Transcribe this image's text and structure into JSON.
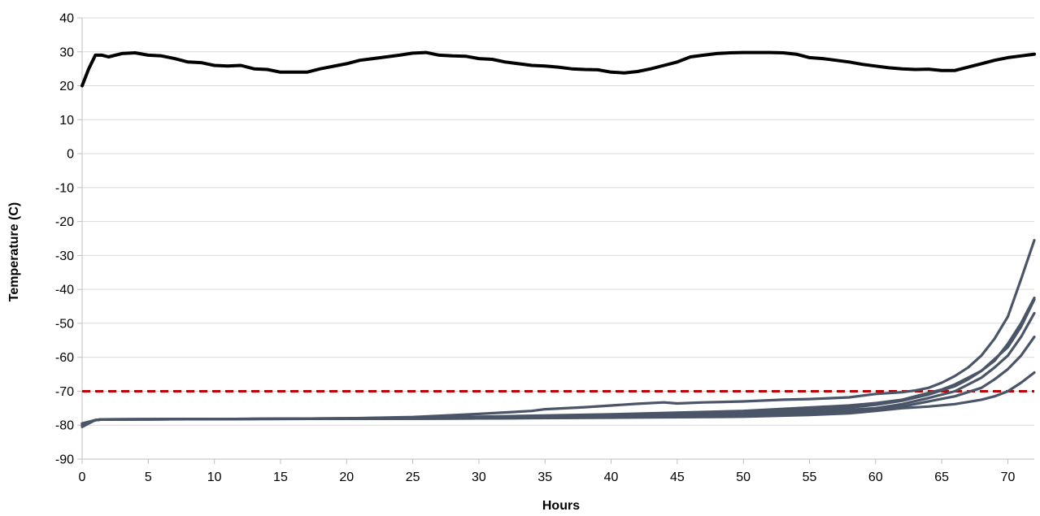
{
  "chart_data": {
    "type": "line",
    "title": "",
    "xlabel": "Hours",
    "ylabel": "Temperature (C)",
    "xlim": [
      0,
      72
    ],
    "ylim": [
      -90,
      40
    ],
    "xticks": [
      0,
      5,
      10,
      15,
      20,
      25,
      30,
      35,
      40,
      45,
      50,
      55,
      60,
      65,
      70
    ],
    "yticks": [
      40,
      30,
      20,
      10,
      0,
      -10,
      -20,
      -30,
      -40,
      -50,
      -60,
      -70,
      -80,
      -90
    ],
    "grid": "horizontal",
    "legend": "none",
    "colors": {
      "ambient": "#000000",
      "samples": "#4a5568",
      "threshold": "#c00000",
      "grid": "#d9d9d9"
    },
    "threshold": {
      "y": -70,
      "style": "dashed"
    },
    "series": [
      {
        "role": "ambient",
        "points": [
          [
            0,
            20
          ],
          [
            0.5,
            25
          ],
          [
            1,
            29
          ],
          [
            1.5,
            29
          ],
          [
            2,
            28.5
          ],
          [
            3,
            29.5
          ],
          [
            4,
            29.7
          ],
          [
            5,
            29
          ],
          [
            6,
            28.8
          ],
          [
            7,
            28
          ],
          [
            8,
            27
          ],
          [
            9,
            26.8
          ],
          [
            10,
            26
          ],
          [
            11,
            25.8
          ],
          [
            12,
            26
          ],
          [
            13,
            25
          ],
          [
            14,
            24.8
          ],
          [
            15,
            24
          ],
          [
            16,
            24
          ],
          [
            17,
            24
          ],
          [
            18,
            25
          ],
          [
            20,
            26.5
          ],
          [
            21,
            27.5
          ],
          [
            22,
            28
          ],
          [
            23,
            28.5
          ],
          [
            24,
            29
          ],
          [
            25,
            29.6
          ],
          [
            26,
            29.8
          ],
          [
            27,
            29
          ],
          [
            28,
            28.8
          ],
          [
            29,
            28.7
          ],
          [
            30,
            28
          ],
          [
            31,
            27.8
          ],
          [
            32,
            27
          ],
          [
            33,
            26.5
          ],
          [
            34,
            26
          ],
          [
            35,
            25.8
          ],
          [
            36,
            25.5
          ],
          [
            37,
            25
          ],
          [
            38,
            24.8
          ],
          [
            39,
            24.7
          ],
          [
            40,
            24
          ],
          [
            41,
            23.8
          ],
          [
            42,
            24.2
          ],
          [
            43,
            25
          ],
          [
            44,
            26
          ],
          [
            45,
            27
          ],
          [
            46,
            28.5
          ],
          [
            47,
            29
          ],
          [
            48,
            29.5
          ],
          [
            49,
            29.7
          ],
          [
            50,
            29.8
          ],
          [
            52,
            29.8
          ],
          [
            53,
            29.7
          ],
          [
            54,
            29.3
          ],
          [
            55,
            28.3
          ],
          [
            56,
            28
          ],
          [
            57,
            27.5
          ],
          [
            58,
            27
          ],
          [
            59,
            26.3
          ],
          [
            60,
            25.8
          ],
          [
            61,
            25.3
          ],
          [
            62,
            25
          ],
          [
            63,
            24.8
          ],
          [
            64,
            24.9
          ],
          [
            65,
            24.5
          ],
          [
            66,
            24.5
          ],
          [
            67,
            25.5
          ],
          [
            68,
            26.5
          ],
          [
            69,
            27.5
          ],
          [
            70,
            28.3
          ],
          [
            71,
            28.8
          ],
          [
            72,
            29.3
          ]
        ]
      },
      {
        "role": "sample",
        "points": [
          [
            0,
            -79.5
          ],
          [
            0.5,
            -79
          ],
          [
            1,
            -78.5
          ],
          [
            1.5,
            -78.3
          ],
          [
            5,
            -78.3
          ],
          [
            10,
            -78.2
          ],
          [
            15,
            -78.1
          ],
          [
            20,
            -78
          ],
          [
            25,
            -77.6
          ],
          [
            30,
            -76.7
          ],
          [
            34,
            -75.8
          ],
          [
            35,
            -75.3
          ],
          [
            38,
            -74.7
          ],
          [
            40,
            -74.2
          ],
          [
            42,
            -73.7
          ],
          [
            44,
            -73.3
          ],
          [
            45,
            -73.6
          ],
          [
            47,
            -73.3
          ],
          [
            50,
            -73
          ],
          [
            53,
            -72.5
          ],
          [
            55,
            -72.3
          ],
          [
            58,
            -71.8
          ],
          [
            60,
            -70.8
          ],
          [
            62,
            -70.3
          ],
          [
            63,
            -69.8
          ],
          [
            64,
            -69
          ],
          [
            65,
            -67.5
          ],
          [
            66,
            -65.5
          ],
          [
            67,
            -63
          ],
          [
            68,
            -59.5
          ],
          [
            69,
            -54.5
          ],
          [
            70,
            -48
          ],
          [
            71,
            -37
          ],
          [
            72,
            -25.5
          ]
        ]
      },
      {
        "role": "sample",
        "points": [
          [
            0,
            -80.5
          ],
          [
            0.5,
            -79.5
          ],
          [
            1,
            -78.5
          ],
          [
            1.5,
            -78.3
          ],
          [
            10,
            -78.2
          ],
          [
            20,
            -78
          ],
          [
            30,
            -77.5
          ],
          [
            40,
            -76.8
          ],
          [
            50,
            -75.8
          ],
          [
            55,
            -74.8
          ],
          [
            58,
            -74.2
          ],
          [
            60,
            -73.5
          ],
          [
            62,
            -72.5
          ],
          [
            64,
            -70.5
          ],
          [
            65,
            -69.5
          ],
          [
            66,
            -68
          ],
          [
            67,
            -66
          ],
          [
            68,
            -64
          ],
          [
            69,
            -61
          ],
          [
            70,
            -56
          ],
          [
            71,
            -50
          ],
          [
            72,
            -42.5
          ]
        ]
      },
      {
        "role": "sample",
        "points": [
          [
            0,
            -80
          ],
          [
            1,
            -78.5
          ],
          [
            1.5,
            -78.3
          ],
          [
            10,
            -78.2
          ],
          [
            20,
            -78
          ],
          [
            30,
            -77.8
          ],
          [
            40,
            -77.2
          ],
          [
            50,
            -76.5
          ],
          [
            55,
            -75.5
          ],
          [
            58,
            -74.8
          ],
          [
            60,
            -74
          ],
          [
            62,
            -72.8
          ],
          [
            64,
            -71
          ],
          [
            66,
            -68.5
          ],
          [
            67,
            -66.5
          ],
          [
            68,
            -64
          ],
          [
            69,
            -60.5
          ],
          [
            70,
            -57
          ],
          [
            71,
            -51
          ],
          [
            72,
            -43
          ]
        ]
      },
      {
        "role": "sample",
        "points": [
          [
            0,
            -79.8
          ],
          [
            1,
            -78.5
          ],
          [
            1.5,
            -78.3
          ],
          [
            10,
            -78.2
          ],
          [
            20,
            -78.1
          ],
          [
            30,
            -78
          ],
          [
            40,
            -77.6
          ],
          [
            50,
            -77
          ],
          [
            55,
            -76
          ],
          [
            58,
            -75.5
          ],
          [
            60,
            -75
          ],
          [
            62,
            -73.8
          ],
          [
            64,
            -72
          ],
          [
            66,
            -70
          ],
          [
            68,
            -66
          ],
          [
            69,
            -63
          ],
          [
            70,
            -59.5
          ],
          [
            71,
            -54
          ],
          [
            72,
            -47
          ]
        ]
      },
      {
        "role": "sample",
        "points": [
          [
            0,
            -79.6
          ],
          [
            1,
            -78.5
          ],
          [
            1.5,
            -78.3
          ],
          [
            10,
            -78.2
          ],
          [
            20,
            -78.1
          ],
          [
            30,
            -78
          ],
          [
            40,
            -77.7
          ],
          [
            50,
            -77.2
          ],
          [
            55,
            -76.5
          ],
          [
            58,
            -76
          ],
          [
            60,
            -75.5
          ],
          [
            62,
            -74.5
          ],
          [
            64,
            -73
          ],
          [
            66,
            -71.5
          ],
          [
            68,
            -69
          ],
          [
            69,
            -66.5
          ],
          [
            70,
            -63.5
          ],
          [
            71,
            -59.5
          ],
          [
            72,
            -54
          ]
        ]
      },
      {
        "role": "sample",
        "points": [
          [
            0,
            -79.7
          ],
          [
            1,
            -78.5
          ],
          [
            1.5,
            -78.3
          ],
          [
            10,
            -78.2
          ],
          [
            20,
            -78.1
          ],
          [
            30,
            -78
          ],
          [
            40,
            -77.8
          ],
          [
            50,
            -77.5
          ],
          [
            55,
            -77
          ],
          [
            58,
            -76.5
          ],
          [
            60,
            -75.8
          ],
          [
            62,
            -75
          ],
          [
            64,
            -74.5
          ],
          [
            66,
            -73.8
          ],
          [
            68,
            -72.5
          ],
          [
            69,
            -71.5
          ],
          [
            70,
            -70
          ],
          [
            71,
            -67.5
          ],
          [
            72,
            -64.5
          ]
        ]
      }
    ]
  }
}
